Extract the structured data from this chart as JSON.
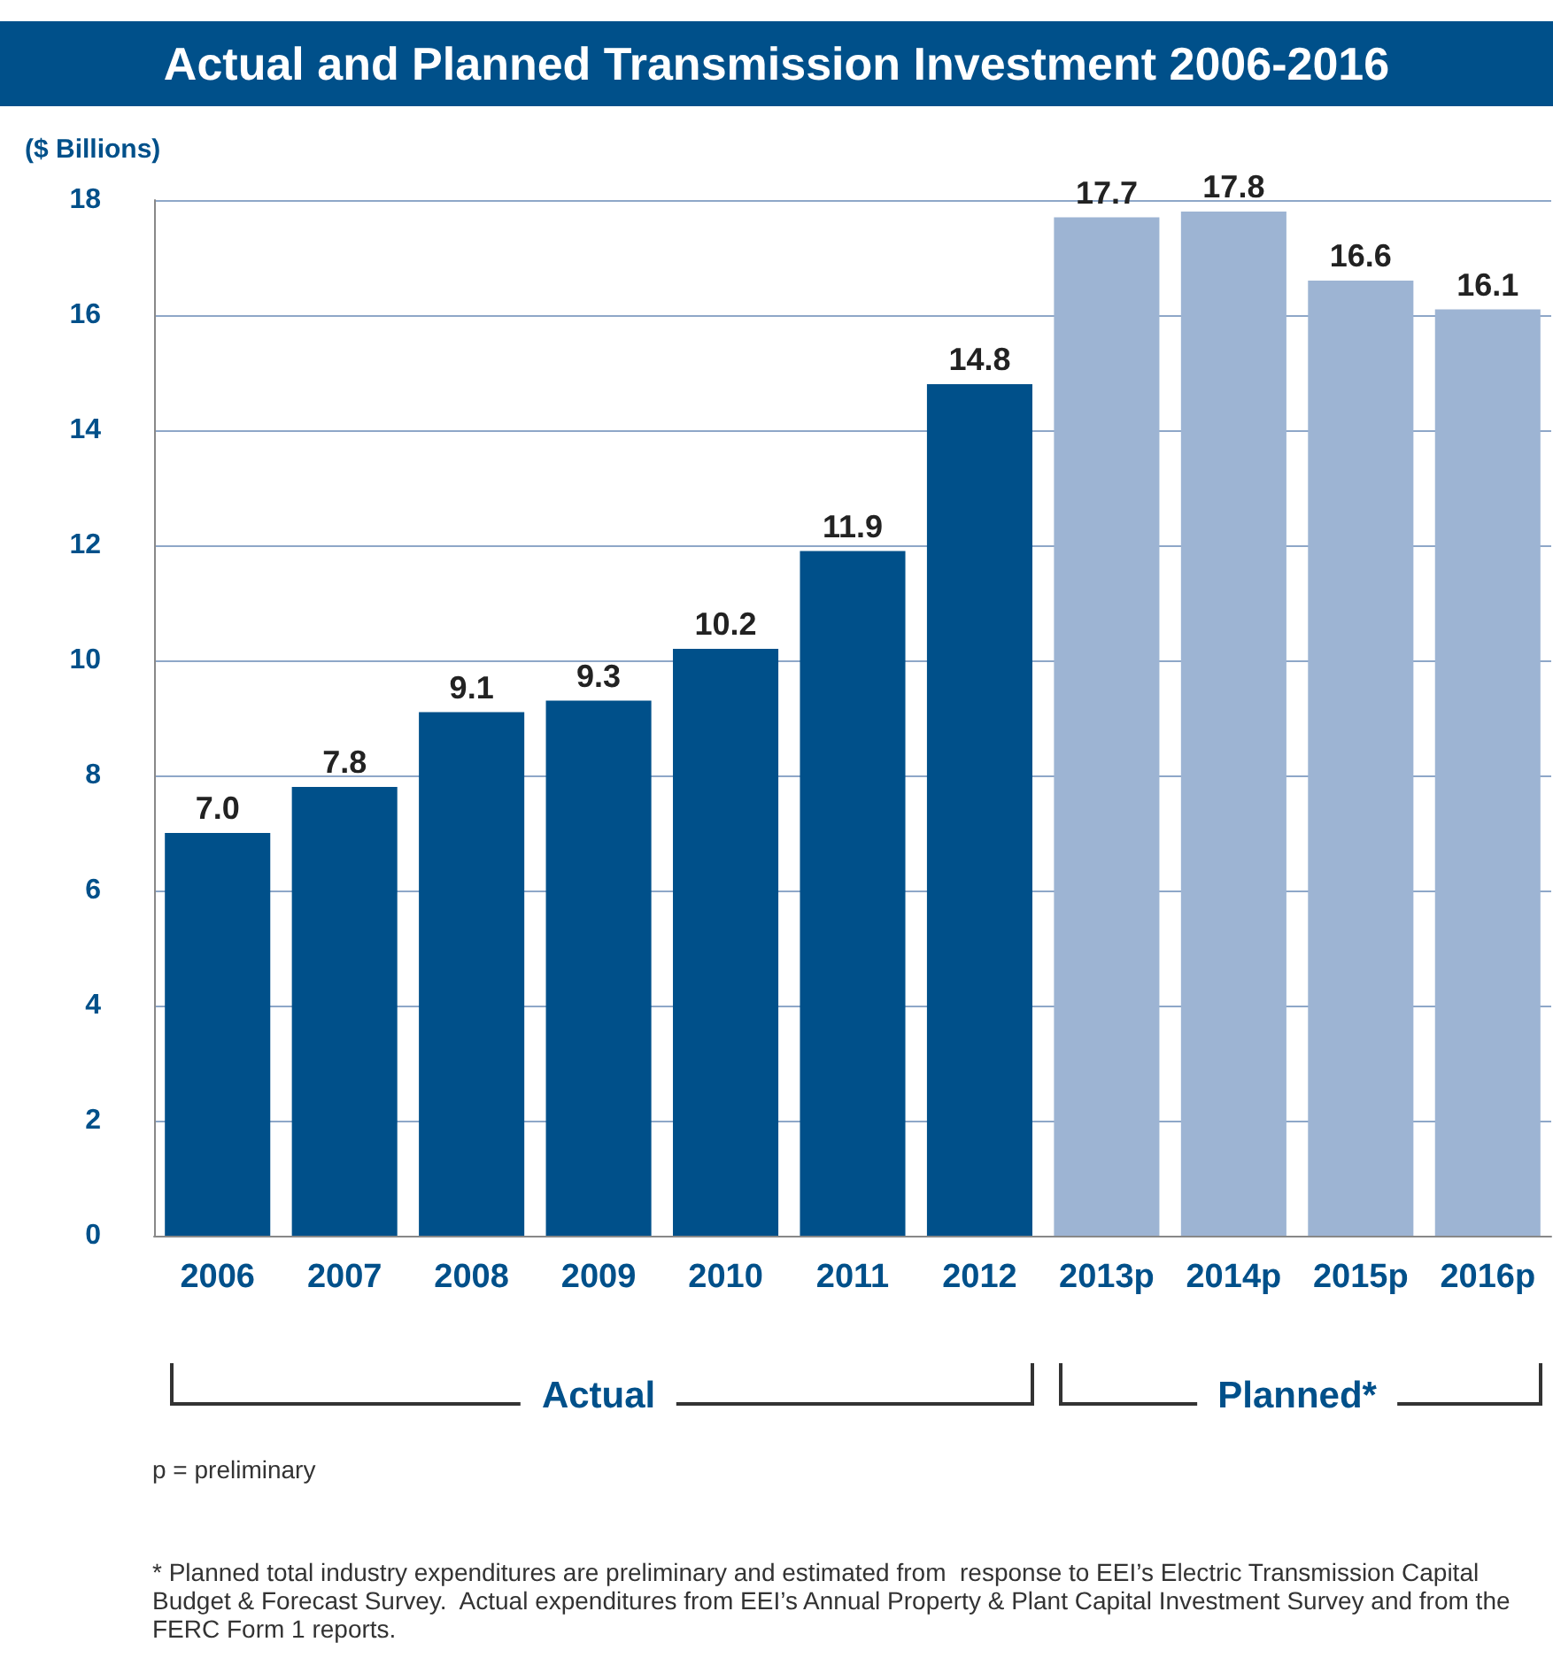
{
  "chart_data": {
    "type": "bar",
    "title": "Actual and Planned Transmission Investment 2006-2016",
    "ylabel": "($ Billions)",
    "categories": [
      "2006",
      "2007",
      "2008",
      "2009",
      "2010",
      "2011",
      "2012",
      "2013p",
      "2014p",
      "2015p",
      "2016p"
    ],
    "values": [
      7.0,
      7.8,
      9.1,
      9.3,
      10.2,
      11.9,
      14.8,
      17.7,
      17.8,
      16.6,
      16.1
    ],
    "colors": [
      "#00508a",
      "#00508a",
      "#00508a",
      "#00508a",
      "#00508a",
      "#00508a",
      "#00508a",
      "#9db4d3",
      "#9db4d3",
      "#9db4d3",
      "#9db4d3"
    ],
    "value_labels": [
      "7.0",
      "7.8",
      "9.1",
      "9.3",
      "10.2",
      "11.9",
      "14.8",
      "17.7",
      "17.8",
      "16.6",
      "16.1"
    ],
    "ylim": [
      0,
      18
    ],
    "yticks": [
      0,
      2,
      4,
      6,
      8,
      10,
      12,
      14,
      16,
      18
    ],
    "grid": true,
    "annotations": [
      "Actual",
      "Planned*",
      "p = preliminary",
      "* Planned total industry expenditures are preliminary and estimated from  response to EEI’s Electric Transmission Capital Budget & Forecast Survey.  Actual expenditures from EEI’s Annual Property & Plant Capital Investment Survey and from the FERC Form 1 reports."
    ]
  }
}
